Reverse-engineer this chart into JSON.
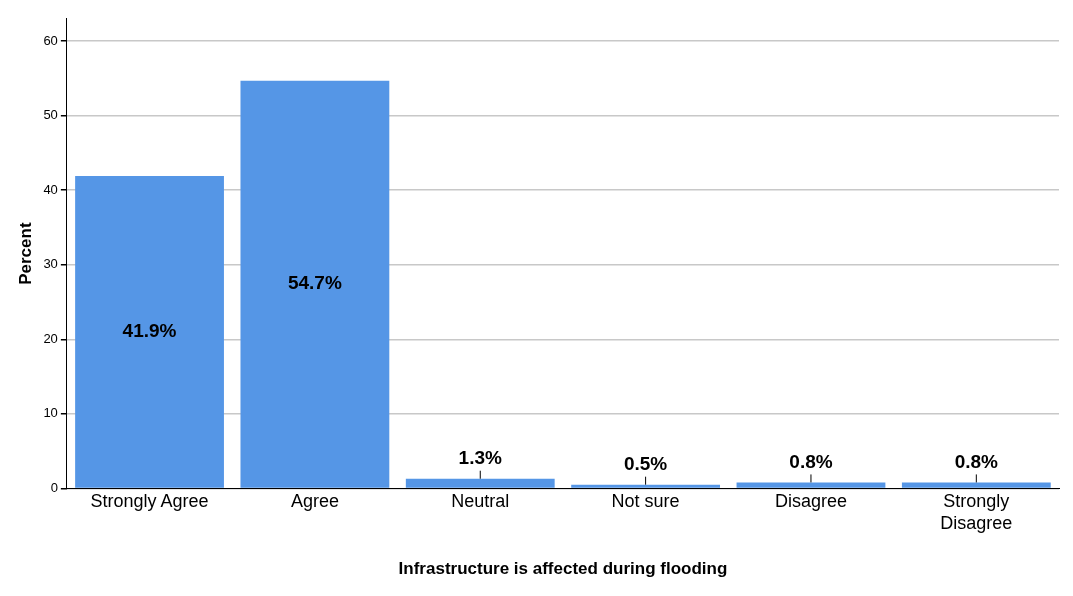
{
  "chart_data": {
    "type": "bar",
    "xlabel": "Infrastructure is affected during flooding",
    "ylabel": "Percent",
    "categories": [
      "Strongly Agree",
      "Agree",
      "Neutral",
      "Not sure",
      "Disagree",
      "Strongly Disagree"
    ],
    "values": [
      41.9,
      54.7,
      1.3,
      0.5,
      0.8,
      0.8
    ],
    "value_labels": [
      "41.9%",
      "54.7%",
      "1.3%",
      "0.5%",
      "0.8%",
      "0.8%"
    ],
    "color": "#5596e6",
    "ylim": [
      0,
      63
    ],
    "yticks": [
      0,
      10,
      20,
      30,
      40,
      50,
      60
    ],
    "grid": "y",
    "legend": false
  }
}
